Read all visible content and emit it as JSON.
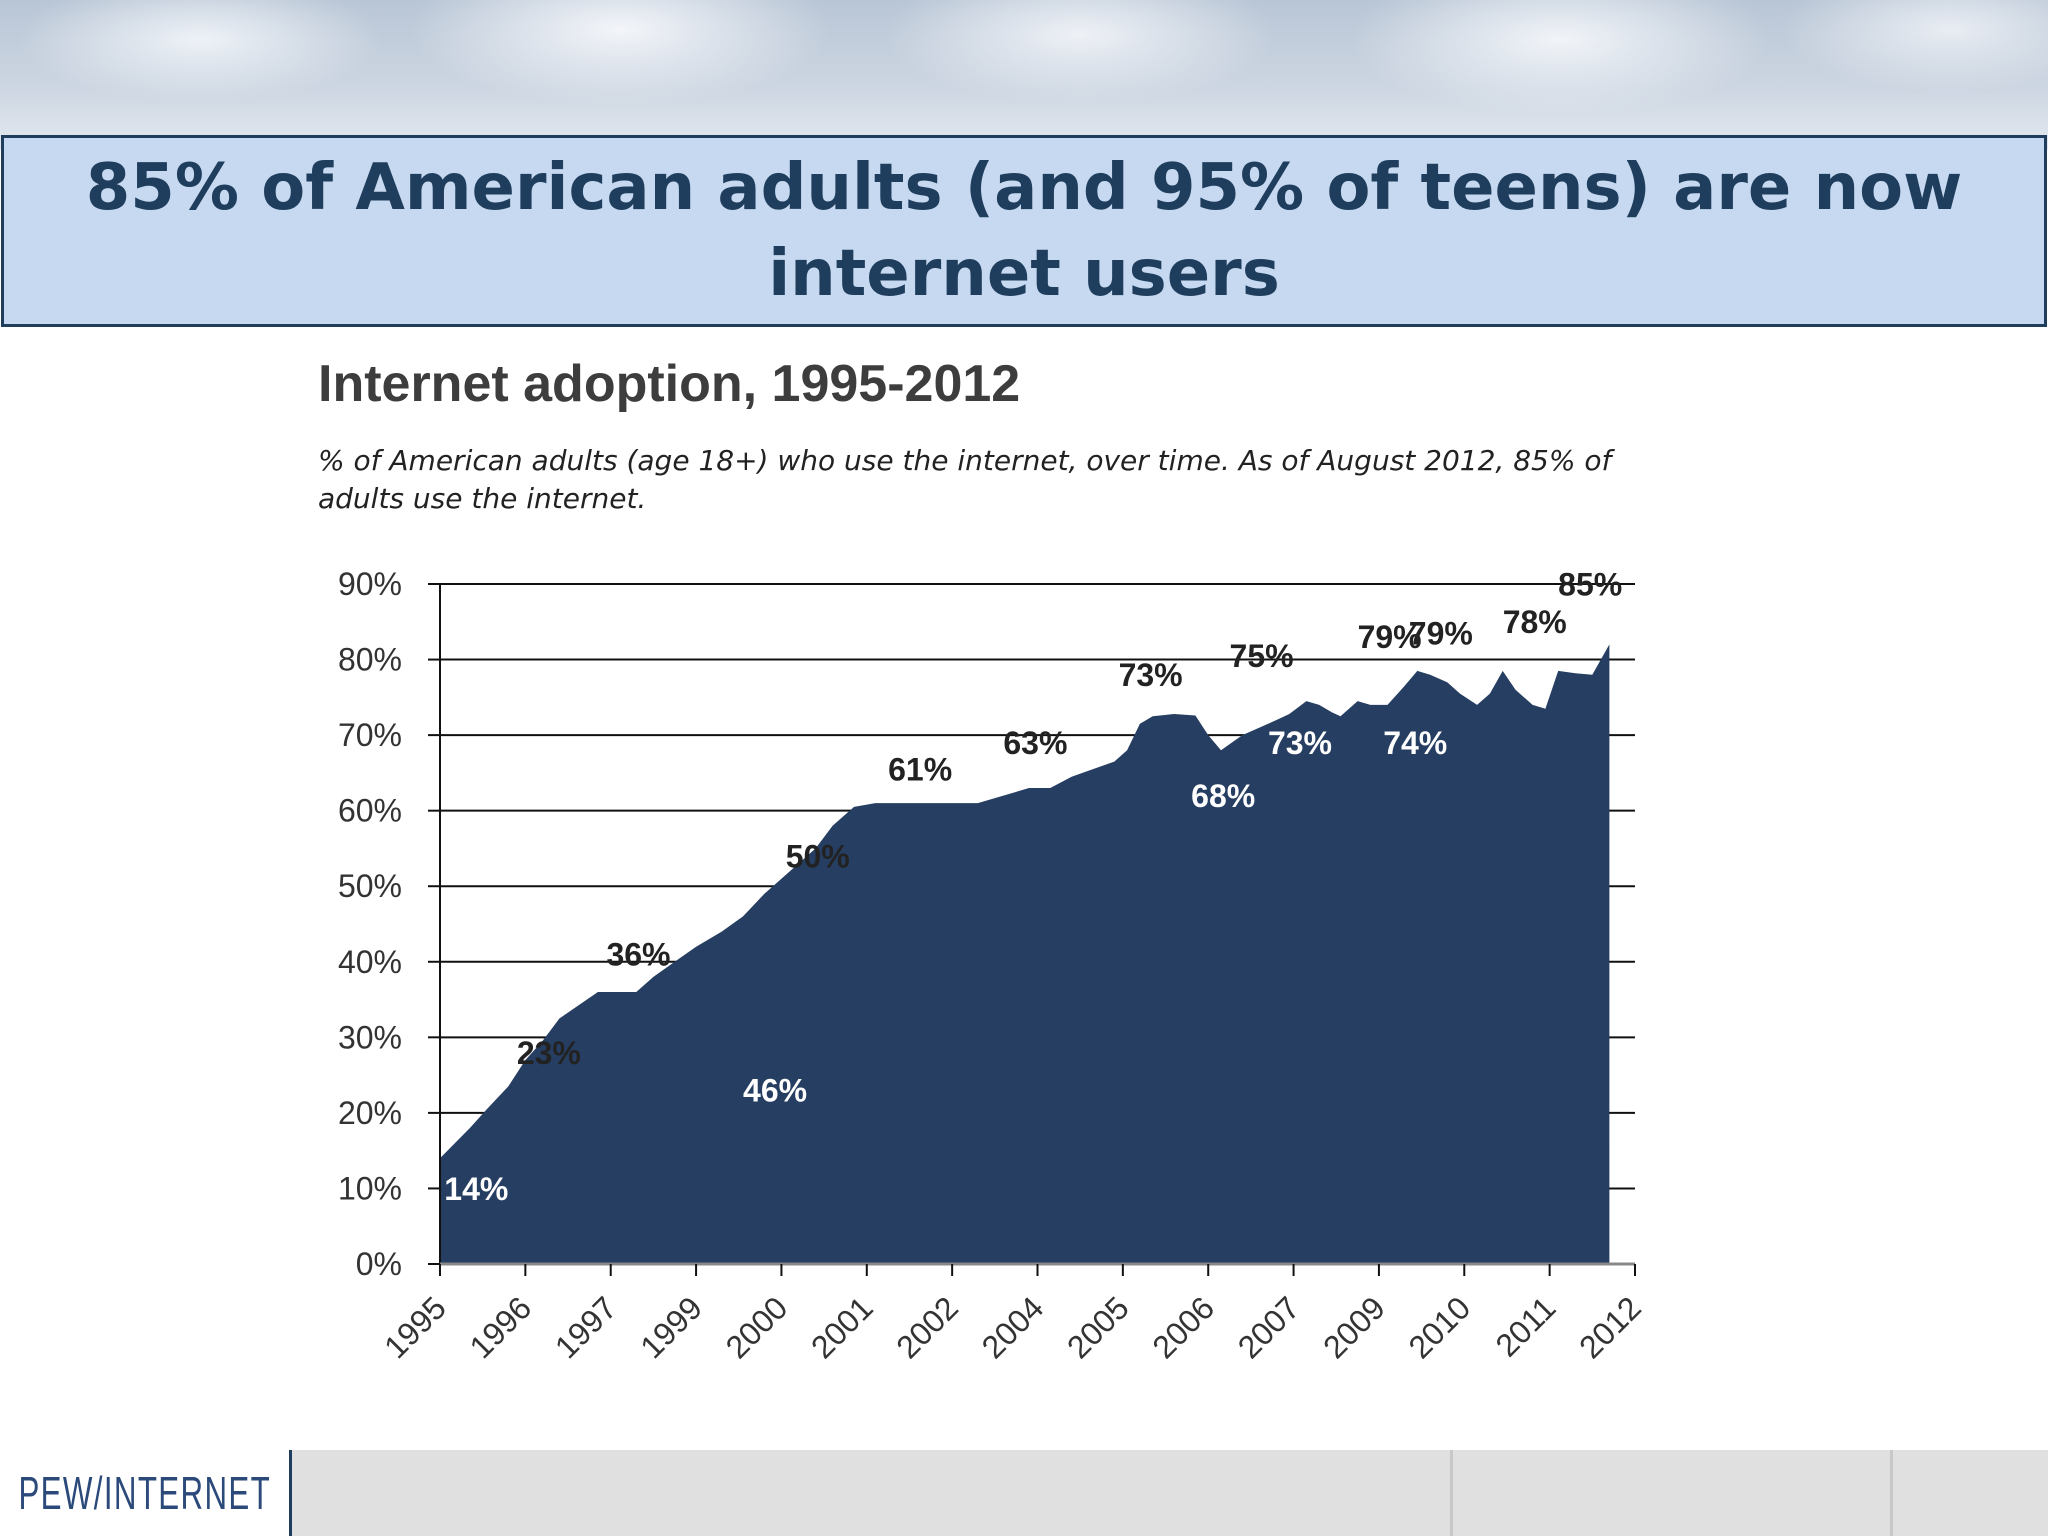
{
  "slide": {
    "headline": "85% of American adults (and 95% of teens) are now internet users"
  },
  "footer": {
    "logo_text": "PEW/INTERNET"
  },
  "colors": {
    "area_fill": "#263e61",
    "headline_bg": "#c6d9f1",
    "headline_text": "#1f3d5c",
    "gridline": "#111111"
  },
  "chart_data": {
    "type": "area",
    "title": "Internet adoption, 1995-2012",
    "subtitle": "% of American adults (age 18+) who use the internet, over time. As of August 2012, 85% of adults use the internet.",
    "xlabel": "",
    "ylabel": "",
    "ylim": [
      0,
      90
    ],
    "yticks": [
      "0%",
      "10%",
      "20%",
      "30%",
      "40%",
      "50%",
      "60%",
      "70%",
      "80%",
      "90%"
    ],
    "categories": [
      "1995",
      "1996",
      "1997",
      "1999",
      "2000",
      "2001",
      "2002",
      "2004",
      "2005",
      "2006",
      "2007",
      "2009",
      "2010",
      "2011",
      "2012"
    ],
    "grid": true,
    "series": [
      {
        "x": [
          0,
          0.35,
          0.55,
          0.8,
          1.0,
          1.2,
          1.4,
          1.85,
          2.0,
          2.3,
          2.4,
          2.5,
          2.75,
          3.0,
          3.3,
          3.55,
          3.8,
          4.1,
          4.4,
          4.6,
          4.85,
          5.1,
          5.3,
          5.6,
          6.0,
          6.3,
          6.6,
          6.9,
          7.15,
          7.4,
          7.65,
          7.9,
          8.05,
          8.2,
          8.35,
          8.6,
          8.85,
          9.0,
          9.15,
          9.4,
          9.6,
          9.8,
          9.95,
          10.15,
          10.3,
          10.45,
          10.55,
          10.75,
          10.9,
          11.1,
          11.3,
          11.45,
          11.6,
          11.8,
          11.95,
          12.15,
          12.3,
          12.45,
          12.6,
          12.8,
          12.95,
          13.1,
          13.3,
          13.5,
          13.7
        ],
        "values": [
          14,
          18,
          20.5,
          23.5,
          27,
          29.5,
          32.5,
          36,
          36,
          36,
          37,
          38,
          40,
          42,
          44,
          46,
          49,
          52,
          55,
          58,
          60.5,
          61,
          61,
          61,
          61,
          61,
          62,
          63,
          63,
          64.5,
          65.5,
          66.5,
          68,
          71.5,
          72.5,
          72.8,
          72.6,
          70,
          68,
          70,
          71,
          72,
          72.8,
          74.5,
          74,
          73,
          72.5,
          74.5,
          74,
          74,
          76.5,
          78.5,
          78,
          77,
          75.5,
          74,
          75.5,
          78.5,
          76,
          74,
          73.5,
          78.5,
          78.2,
          78,
          82
        ]
      }
    ],
    "annotations": [
      {
        "text": "14%",
        "x": 0.05,
        "y": 8.5,
        "color": "#ffffff"
      },
      {
        "text": "23%",
        "x": 0.9,
        "y": 26.5,
        "color": "#222222"
      },
      {
        "text": "36%",
        "x": 1.95,
        "y": 39.5,
        "color": "#222222"
      },
      {
        "text": "46%",
        "x": 3.55,
        "y": 21.5,
        "color": "#ffffff"
      },
      {
        "text": "50%",
        "x": 4.05,
        "y": 52.5,
        "color": "#222222"
      },
      {
        "text": "61%",
        "x": 5.25,
        "y": 64,
        "color": "#222222"
      },
      {
        "text": "63%",
        "x": 6.6,
        "y": 67.5,
        "color": "#222222"
      },
      {
        "text": "73%",
        "x": 7.95,
        "y": 76.5,
        "color": "#222222"
      },
      {
        "text": "68%",
        "x": 8.8,
        "y": 60.5,
        "color": "#ffffff"
      },
      {
        "text": "75%",
        "x": 9.25,
        "y": 79,
        "color": "#222222"
      },
      {
        "text": "73%",
        "x": 9.7,
        "y": 67.5,
        "color": "#ffffff"
      },
      {
        "text": "79%",
        "x": 10.75,
        "y": 81.5,
        "color": "#222222"
      },
      {
        "text": "74%",
        "x": 11.05,
        "y": 67.5,
        "color": "#ffffff"
      },
      {
        "text": "79%",
        "x": 11.35,
        "y": 82,
        "color": "#222222"
      },
      {
        "text": "78%",
        "x": 12.45,
        "y": 83.5,
        "color": "#222222"
      },
      {
        "text": "85%",
        "x": 13.1,
        "y": 88.5,
        "color": "#222222"
      }
    ]
  }
}
